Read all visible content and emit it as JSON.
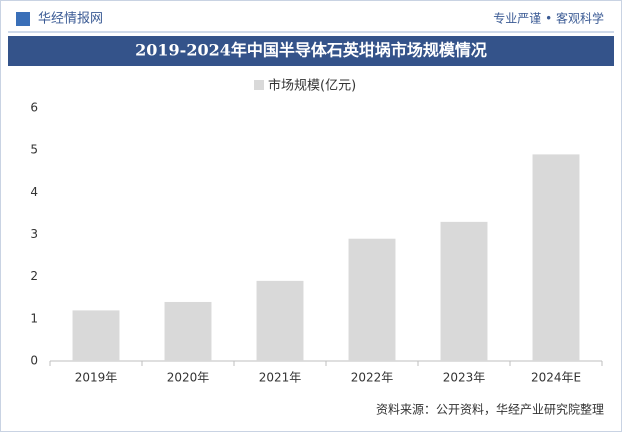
{
  "header": {
    "logo": "华经情报网",
    "slogan": "专业严谨 • 客观科学"
  },
  "chart_data": {
    "type": "bar",
    "title": "2019-2024年中国半导体石英坩埚市场规模情况",
    "categories": [
      "2019年",
      "2020年",
      "2021年",
      "2022年",
      "2023年",
      "2024年E"
    ],
    "series": [
      {
        "name": "市场规模(亿元)",
        "color": "#d9d9d9",
        "values": [
          1.2,
          1.4,
          1.9,
          2.9,
          3.3,
          4.9
        ]
      }
    ],
    "ylim": [
      0,
      6
    ],
    "yticks": [
      0,
      1,
      2,
      3,
      4,
      5,
      6
    ],
    "grid": false
  },
  "footer": {
    "source": "资料来源：公开资料，华经产业研究院整理"
  }
}
